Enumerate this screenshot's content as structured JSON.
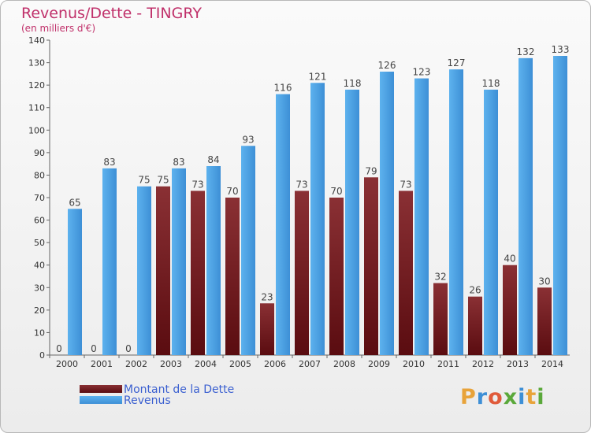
{
  "title": "Revenus/Dette - TINGRY",
  "subtitle": "(en milliers d'€)",
  "logo_text": "Proxiti",
  "colors": {
    "debt": "#7a1f22",
    "revenue": "#4aa3e6",
    "title": "#c0306a",
    "legend_text": "#3a5fd0"
  },
  "chart_data": {
    "type": "bar",
    "categories": [
      "2000",
      "2001",
      "2002",
      "2003",
      "2004",
      "2005",
      "2006",
      "2007",
      "2008",
      "2009",
      "2010",
      "2011",
      "2012",
      "2013",
      "2014"
    ],
    "series": [
      {
        "name": "Montant de la Dette",
        "values": [
          0,
          0,
          0,
          75,
          73,
          70,
          23,
          73,
          70,
          79,
          73,
          32,
          26,
          40,
          30
        ]
      },
      {
        "name": "Revenus",
        "values": [
          65,
          83,
          75,
          83,
          84,
          93,
          116,
          121,
          118,
          126,
          123,
          127,
          118,
          132,
          133
        ]
      }
    ],
    "ylim": [
      0,
      140
    ],
    "yticks": [
      0,
      10,
      20,
      30,
      40,
      50,
      60,
      70,
      80,
      90,
      100,
      110,
      120,
      130,
      140
    ],
    "grid": false,
    "legend_position": "bottom-left"
  }
}
